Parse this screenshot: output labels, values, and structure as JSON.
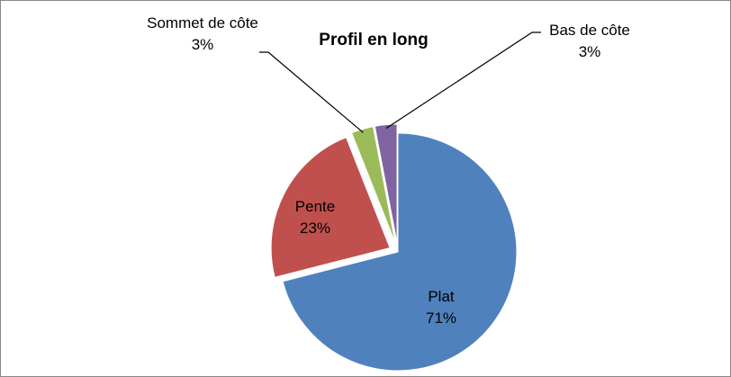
{
  "chart_data": {
    "type": "pie",
    "title": "Profil en long",
    "categories": [
      "Plat",
      "Pente",
      "Sommet de côte",
      "Bas de côte"
    ],
    "values": [
      71,
      23,
      3,
      3
    ],
    "value_labels": [
      "71%",
      "23%",
      "3%",
      "3%"
    ],
    "colors": [
      "#4f81bd",
      "#c0504d",
      "#9bbb59",
      "#8064a2"
    ]
  }
}
